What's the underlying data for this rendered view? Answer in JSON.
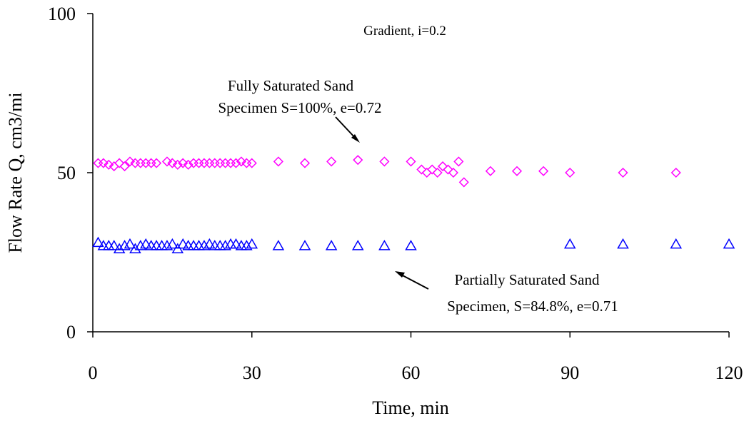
{
  "chart_data": {
    "type": "scatter",
    "xlabel": "Time, min",
    "ylabel": "Flow Rate Q, cm3/mi",
    "xlim": [
      0,
      120
    ],
    "ylim": [
      0,
      100
    ],
    "x_ticks": [
      0,
      30,
      60,
      90,
      120
    ],
    "y_ticks": [
      0,
      50,
      100
    ],
    "grid": false,
    "legend": "none",
    "annotations": {
      "gradient": "Gradient, i=0.2",
      "fully_line1": "Fully Saturated Sand",
      "fully_line2": "Specimen S=100%, e=0.72",
      "partial_line1": "Partially Saturated Sand",
      "partial_line2": "Specimen, S=84.8%, e=0.71"
    },
    "series": [
      {
        "marker": "diamond",
        "color": "#ff00ff",
        "points": [
          [
            1,
            53
          ],
          [
            2,
            53
          ],
          [
            3,
            52.5
          ],
          [
            4,
            52
          ],
          [
            5,
            53
          ],
          [
            6,
            52
          ],
          [
            7,
            53.5
          ],
          [
            8,
            53
          ],
          [
            9,
            53
          ],
          [
            10,
            53
          ],
          [
            11,
            53
          ],
          [
            12,
            53
          ],
          [
            14,
            53.5
          ],
          [
            15,
            53
          ],
          [
            16,
            52.5
          ],
          [
            17,
            53
          ],
          [
            18,
            52.5
          ],
          [
            19,
            53
          ],
          [
            20,
            53
          ],
          [
            21,
            53
          ],
          [
            22,
            53
          ],
          [
            23,
            53
          ],
          [
            24,
            53
          ],
          [
            25,
            53
          ],
          [
            26,
            53
          ],
          [
            27,
            53
          ],
          [
            28,
            53.5
          ],
          [
            29,
            53
          ],
          [
            30,
            53
          ],
          [
            35,
            53.5
          ],
          [
            40,
            53
          ],
          [
            45,
            53.5
          ],
          [
            50,
            54
          ],
          [
            55,
            53.5
          ],
          [
            60,
            53.5
          ],
          [
            62,
            51
          ],
          [
            63,
            50
          ],
          [
            64,
            51
          ],
          [
            65,
            50
          ],
          [
            66,
            52
          ],
          [
            67,
            51
          ],
          [
            68,
            50
          ],
          [
            69,
            53.5
          ],
          [
            70,
            47
          ],
          [
            75,
            50.5
          ],
          [
            80,
            50.5
          ],
          [
            85,
            50.5
          ],
          [
            90,
            50
          ],
          [
            100,
            50
          ],
          [
            110,
            50
          ]
        ]
      },
      {
        "marker": "triangle",
        "color": "#0000ff",
        "points": [
          [
            1,
            28
          ],
          [
            2,
            27
          ],
          [
            3,
            27
          ],
          [
            4,
            27
          ],
          [
            5,
            26
          ],
          [
            6,
            27
          ],
          [
            7,
            27.5
          ],
          [
            8,
            26
          ],
          [
            9,
            27
          ],
          [
            10,
            27.5
          ],
          [
            11,
            27
          ],
          [
            12,
            27
          ],
          [
            13,
            27
          ],
          [
            14,
            27
          ],
          [
            15,
            27.5
          ],
          [
            16,
            26
          ],
          [
            17,
            27.5
          ],
          [
            18,
            27
          ],
          [
            19,
            27
          ],
          [
            20,
            27
          ],
          [
            21,
            27
          ],
          [
            22,
            27.5
          ],
          [
            23,
            27
          ],
          [
            24,
            27
          ],
          [
            25,
            27
          ],
          [
            26,
            27.5
          ],
          [
            27,
            27.5
          ],
          [
            28,
            27
          ],
          [
            29,
            27
          ],
          [
            30,
            27.5
          ],
          [
            35,
            27
          ],
          [
            40,
            27
          ],
          [
            45,
            27
          ],
          [
            50,
            27
          ],
          [
            55,
            27
          ],
          [
            60,
            27
          ],
          [
            90,
            27.5
          ],
          [
            100,
            27.5
          ],
          [
            110,
            27.5
          ],
          [
            120,
            27.5
          ]
        ]
      }
    ]
  }
}
